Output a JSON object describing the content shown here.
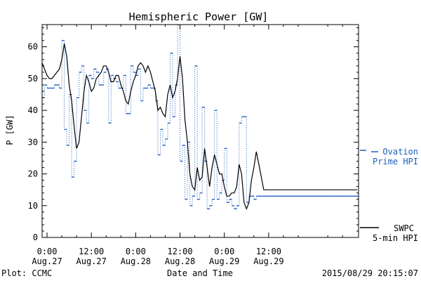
{
  "chart_data": {
    "type": "line",
    "title": "Hemispheric Power [GW]",
    "xlabel": "Date and Time",
    "ylabel": "P [GW]",
    "ylim": [
      0,
      67
    ],
    "xlim": [
      -20,
      1265
    ],
    "grid": false,
    "y_ticks": [
      "0",
      "10",
      "20",
      "30",
      "40",
      "50",
      "60"
    ],
    "x_ticks": [
      {
        "t": 0,
        "time": "0:00",
        "date": "Aug.27"
      },
      {
        "t": 180,
        "time": "12:00",
        "date": "Aug.27"
      },
      {
        "t": 360,
        "time": "0:00",
        "date": "Aug.28"
      },
      {
        "t": 540,
        "time": "12:00",
        "date": "Aug.28"
      },
      {
        "t": 720,
        "time": "0:00",
        "date": "Aug.29"
      },
      {
        "t": 900,
        "time": "12:00",
        "date": "Aug.29"
      }
    ],
    "x_unit_note": "x values are minutes after 2015-08-27 00:00 UT",
    "legend": {
      "placement": "right",
      "ovation": [
        "Ovation",
        "Prime HPI"
      ],
      "swpc": [
        "SWPC",
        "5-min HPI"
      ]
    },
    "series": [
      {
        "name": "Ovation Prime HPI",
        "style": "step-dotted",
        "color": "#1f5fbf",
        "x": [
          -20,
          -10,
          0,
          10,
          20,
          30,
          40,
          50,
          60,
          70,
          80,
          90,
          100,
          110,
          120,
          130,
          140,
          150,
          160,
          170,
          180,
          190,
          200,
          210,
          220,
          230,
          240,
          250,
          260,
          270,
          280,
          290,
          300,
          310,
          320,
          330,
          340,
          350,
          360,
          370,
          380,
          390,
          400,
          410,
          420,
          430,
          440,
          450,
          460,
          470,
          480,
          490,
          500,
          510,
          520,
          530,
          540,
          550,
          560,
          570,
          580,
          590,
          600,
          610,
          620,
          630,
          640,
          650,
          660,
          670,
          680,
          690,
          700,
          710,
          720,
          730,
          740,
          750,
          760,
          770,
          780,
          790,
          800,
          810,
          820,
          830,
          840,
          850,
          860,
          870,
          880,
          890,
          900,
          910,
          920,
          930,
          940,
          950,
          960,
          970,
          980,
          990,
          1000,
          1010,
          1020,
          1030,
          1040,
          1050,
          1060,
          1070,
          1080,
          1090,
          1100,
          1110,
          1120,
          1130,
          1140,
          1150,
          1160,
          1170,
          1180,
          1190,
          1200,
          1210,
          1220,
          1230,
          1240,
          1250,
          1260
        ],
        "values": [
          44,
          48,
          47,
          47,
          47,
          48,
          48,
          47,
          62,
          34,
          29,
          45,
          19,
          24,
          44,
          52,
          54,
          40,
          36,
          51,
          50,
          53,
          52,
          48,
          48,
          52,
          53,
          36,
          51,
          50,
          49,
          47,
          47,
          51,
          39,
          39,
          54,
          52,
          51,
          53,
          43,
          47,
          47,
          48,
          47,
          47,
          43,
          26,
          34,
          29,
          31,
          36,
          58,
          38,
          48,
          67,
          24,
          29,
          12,
          30,
          10,
          13,
          54,
          12,
          14,
          41,
          24,
          9,
          10,
          12,
          40,
          12,
          14,
          18,
          28,
          11,
          12,
          10,
          9,
          10,
          36,
          38,
          38,
          11,
          13,
          13,
          12,
          13,
          13,
          13,
          13,
          13,
          13,
          13,
          13,
          13,
          13,
          13,
          13,
          13,
          13,
          13,
          13,
          13,
          13,
          13,
          13,
          13,
          13,
          13,
          13,
          13,
          13,
          13,
          13,
          13,
          13,
          13,
          13,
          13,
          13,
          13,
          13,
          13,
          13,
          13,
          13,
          13,
          13
        ]
      },
      {
        "name": "SWPC 5-min HPI",
        "style": "line",
        "color": "#000000",
        "x": [
          -20,
          -10,
          0,
          10,
          20,
          30,
          40,
          50,
          60,
          70,
          80,
          90,
          100,
          110,
          120,
          130,
          140,
          150,
          160,
          170,
          180,
          190,
          200,
          210,
          220,
          230,
          240,
          250,
          260,
          270,
          280,
          290,
          300,
          310,
          320,
          330,
          340,
          350,
          360,
          370,
          380,
          390,
          400,
          410,
          420,
          430,
          440,
          450,
          460,
          470,
          480,
          490,
          500,
          510,
          520,
          530,
          540,
          550,
          560,
          570,
          580,
          590,
          600,
          610,
          620,
          630,
          640,
          650,
          660,
          670,
          680,
          690,
          700,
          710,
          720,
          730,
          740,
          750,
          760,
          770,
          780,
          790,
          800,
          810,
          820,
          830,
          840,
          850,
          860,
          870,
          880,
          890,
          900,
          910,
          920,
          930,
          940,
          950,
          960,
          970,
          980,
          990,
          1000,
          1010,
          1020,
          1030,
          1040,
          1050,
          1060,
          1070,
          1080,
          1090,
          1100,
          1110,
          1120,
          1130,
          1140,
          1150,
          1160,
          1170,
          1180,
          1190,
          1200,
          1210,
          1220,
          1230,
          1240,
          1250,
          1260
        ],
        "values": [
          55,
          53,
          51,
          50,
          50,
          51,
          52,
          53,
          56,
          61,
          57,
          48,
          43,
          35,
          28,
          30,
          38,
          46,
          51,
          49,
          46,
          47,
          50,
          51,
          52,
          54,
          54,
          52,
          49,
          49,
          51,
          51,
          48,
          46,
          43,
          42,
          46,
          49,
          51,
          54,
          55,
          54,
          52,
          54,
          52,
          49,
          46,
          40,
          41,
          39,
          38,
          45,
          48,
          44,
          46,
          50,
          57,
          50,
          37,
          30,
          20,
          16,
          15,
          22,
          18,
          19,
          28,
          22,
          16,
          22,
          26,
          23,
          20,
          20,
          16,
          13,
          13,
          14,
          14,
          16,
          23,
          20,
          11,
          9,
          11,
          18,
          22,
          27,
          23,
          19,
          15,
          15,
          15,
          15,
          15,
          15,
          15,
          15,
          15,
          15,
          15,
          15,
          15,
          15,
          15,
          15,
          15,
          15,
          15,
          15,
          15,
          15,
          15,
          15,
          15,
          15,
          15,
          15,
          15,
          15,
          15,
          15,
          15,
          15,
          15,
          15,
          15,
          15,
          15
        ]
      }
    ]
  },
  "footer": {
    "left": "Plot: CCMC",
    "right": "2015/08/29 20:15:07"
  }
}
